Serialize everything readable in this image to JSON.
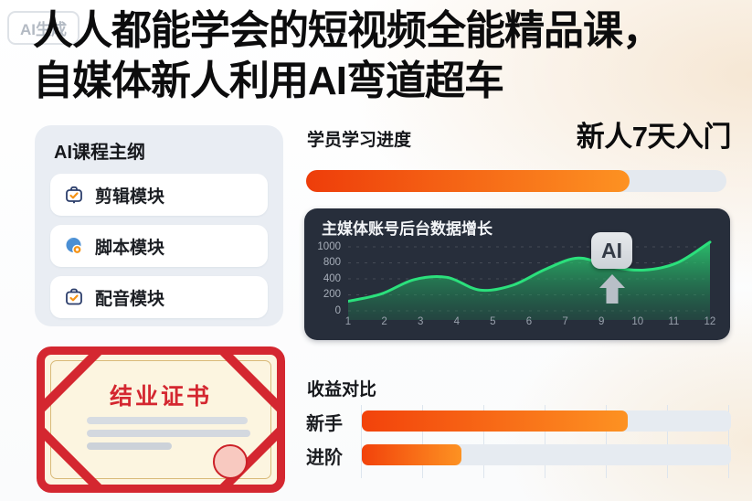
{
  "watermark": {
    "label": "AI生成"
  },
  "header": {
    "title_line1": "人人都能学会的短视频全能精品课，",
    "title_line2": "自媒体新人利用AI弯道超车"
  },
  "course_panel": {
    "title": "AI课程主纲",
    "modules": [
      {
        "icon": "case-check-icon",
        "label": "剪辑模块"
      },
      {
        "icon": "globe-pin-icon",
        "label": "脚本模块"
      },
      {
        "icon": "case-check-icon",
        "label": "配音模块"
      }
    ]
  },
  "progress": {
    "label": "学员学习进度",
    "headline": "新人7天入门",
    "percent_estimate": 77
  },
  "certificate": {
    "title": "结业证书"
  },
  "chart_data": [
    {
      "type": "area",
      "title": "主媒体账号后台数据增长",
      "x_months": [
        1,
        2,
        3,
        4,
        5,
        6,
        7,
        8,
        9,
        10,
        11,
        12
      ],
      "x_tick_labels": [
        "1",
        "2",
        "3",
        "4",
        "5",
        "6",
        "7",
        "9",
        "10",
        "11",
        "12"
      ],
      "values_estimate": [
        120,
        210,
        390,
        440,
        260,
        320,
        640,
        860,
        700,
        620,
        800,
        1060
      ],
      "y_tick_labels": [
        "1000",
        "800",
        "400",
        "200",
        "0"
      ],
      "ylim": [
        0,
        1100
      ],
      "grid": "dashed-horizontal",
      "legend": "none",
      "annotation": {
        "label": "AI",
        "arrow": "up"
      },
      "line_color": "#2be07c",
      "panel_bg": "#272e3b"
    },
    {
      "type": "bar",
      "title": "收益对比",
      "orientation": "horizontal",
      "categories": [
        "新手",
        "进阶"
      ],
      "values_percent_estimate": [
        72,
        27
      ],
      "grid": "faint-vertical",
      "bar_color_start": "#f2420b",
      "bar_color_end": "#fd9222"
    }
  ],
  "colors": {
    "accent_orange_start": "#ee3d0a",
    "accent_orange_end": "#fd9222",
    "chart_green": "#2be07c",
    "chart_panel_bg": "#272e3b",
    "certificate_red": "#d42730",
    "panel_bg": "#e9edf3",
    "track_grey": "#e4e9ef"
  }
}
